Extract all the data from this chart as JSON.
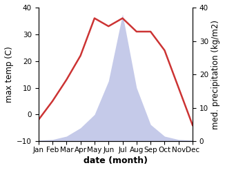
{
  "months": [
    "Jan",
    "Feb",
    "Mar",
    "Apr",
    "May",
    "Jun",
    "Jul",
    "Aug",
    "Sep",
    "Oct",
    "Nov",
    "Dec"
  ],
  "month_indices": [
    1,
    2,
    3,
    4,
    5,
    6,
    7,
    8,
    9,
    10,
    11,
    12
  ],
  "temperature": [
    -2,
    5,
    13,
    22,
    36,
    33,
    36,
    31,
    31,
    24,
    10,
    -4
  ],
  "precipitation": [
    0.3,
    0.5,
    1.5,
    4,
    8,
    18,
    38,
    16,
    5,
    1.5,
    0.5,
    0.3
  ],
  "temp_ylim": [
    -10,
    40
  ],
  "precip_ylim": [
    0,
    40
  ],
  "temp_color": "#cc3333",
  "precip_color": "#c5cae9",
  "xlabel": "date (month)",
  "ylabel_left": "max temp (C)",
  "ylabel_right": "med. precipitation (kg/m2)",
  "tick_fontsize": 7.5,
  "label_fontsize": 8.5,
  "xlabel_fontsize": 9,
  "figsize": [
    3.26,
    2.47
  ],
  "dpi": 100
}
